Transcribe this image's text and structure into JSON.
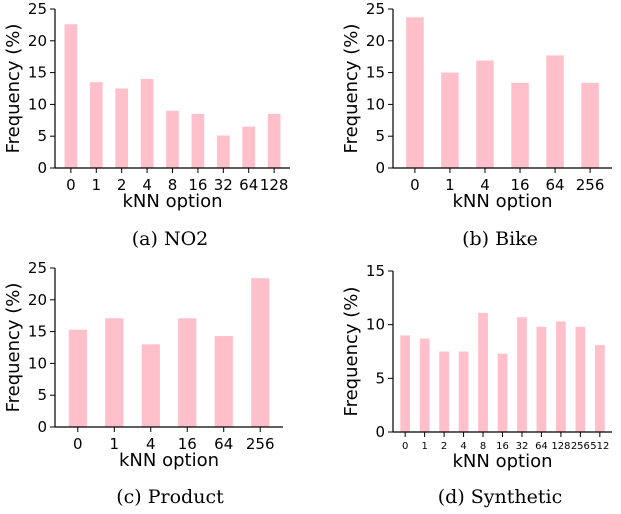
{
  "chart_data": [
    {
      "type": "bar",
      "caption": "(a) NO2",
      "xlabel": "kNN option",
      "ylabel": "Frequency (%)",
      "categories": [
        "0",
        "1",
        "2",
        "4",
        "8",
        "16",
        "32",
        "64",
        "128"
      ],
      "values": [
        22.6,
        13.5,
        12.5,
        14.0,
        9.0,
        8.5,
        5.1,
        6.5,
        8.5
      ],
      "ylim": [
        0,
        25
      ],
      "yticks": [
        "0",
        "5",
        "10",
        "15",
        "20",
        "25"
      ],
      "color": "#ffbfcb"
    },
    {
      "type": "bar",
      "caption": "(b) Bike",
      "xlabel": "kNN option",
      "ylabel": "Frequency (%)",
      "categories": [
        "0",
        "1",
        "4",
        "16",
        "64",
        "256"
      ],
      "values": [
        23.7,
        15.0,
        16.9,
        13.4,
        17.7,
        13.4
      ],
      "ylim": [
        0,
        25
      ],
      "yticks": [
        "0",
        "5",
        "10",
        "15",
        "20",
        "25"
      ],
      "color": "#ffbfcb"
    },
    {
      "type": "bar",
      "caption": "(c) Product",
      "xlabel": "kNN option",
      "ylabel": "Frequency (%)",
      "categories": [
        "0",
        "1",
        "4",
        "16",
        "64",
        "256"
      ],
      "values": [
        15.3,
        17.1,
        13.0,
        17.1,
        14.3,
        23.4
      ],
      "ylim": [
        0,
        25
      ],
      "yticks": [
        "0",
        "5",
        "10",
        "15",
        "20",
        "25"
      ],
      "color": "#ffbfcb"
    },
    {
      "type": "bar",
      "caption": "(d) Synthetic",
      "xlabel": "kNN option",
      "ylabel": "Frequency (%)",
      "categories": [
        "0",
        "1",
        "2",
        "4",
        "8",
        "16",
        "32",
        "64",
        "128",
        "256",
        "512"
      ],
      "values": [
        9.0,
        8.7,
        7.5,
        7.5,
        11.1,
        7.3,
        10.7,
        9.8,
        10.3,
        9.8,
        8.1
      ],
      "ylim": [
        0,
        15
      ],
      "yticks": [
        "0",
        "5",
        "10",
        "15"
      ],
      "color": "#ffbfcb"
    }
  ]
}
